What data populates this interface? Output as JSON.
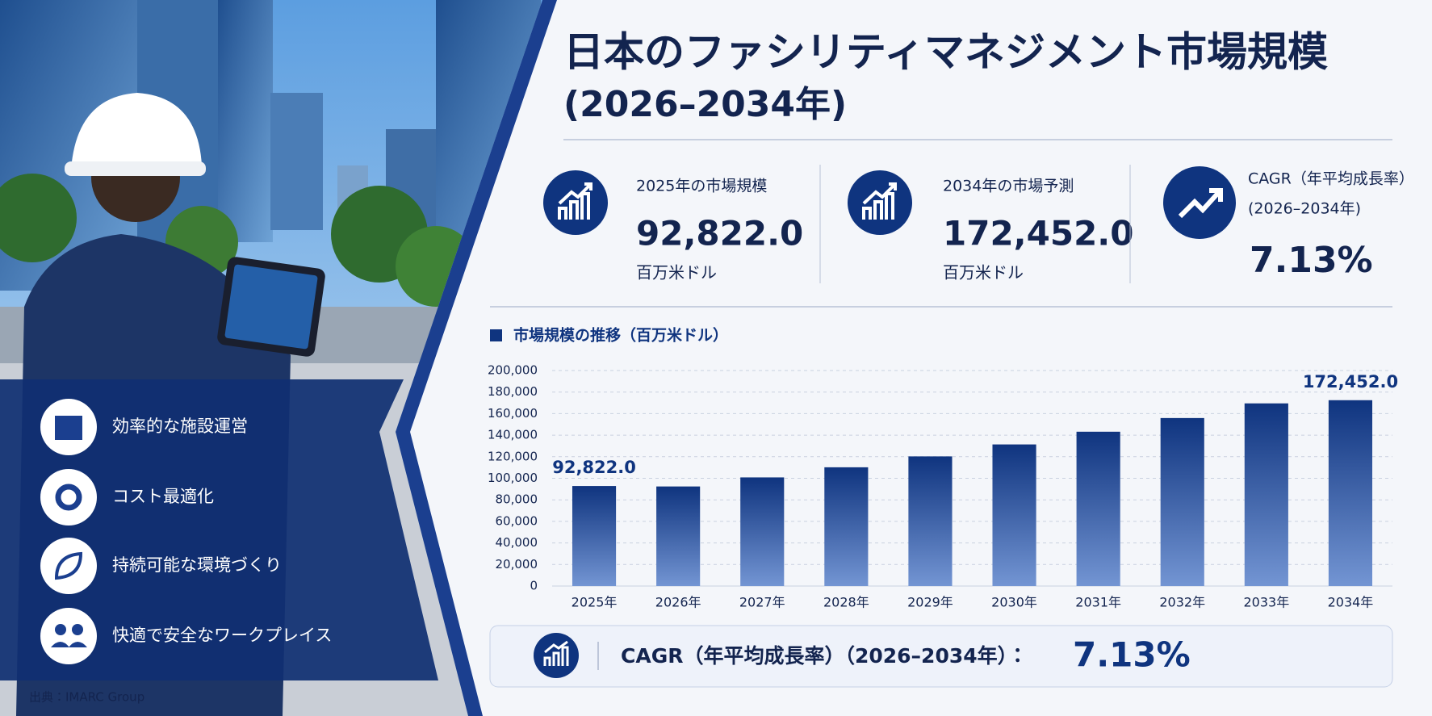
{
  "header": {
    "title": "日本のファシリティマネジメント市場規模",
    "subtitle": "(2026–2034年)"
  },
  "kpis": [
    {
      "label": "2025年の市場規模",
      "value": "92,822.0",
      "unit": "百万米ドル"
    },
    {
      "label": "2034年の市場予測",
      "value": "172,452.0",
      "unit": "百万米ドル"
    },
    {
      "label": "CAGR（年平均成長率）",
      "sublabel": "(2026–2034年)",
      "value": "7.13%"
    }
  ],
  "features": [
    "効率的な施設運営",
    "コスト最適化",
    "持続可能な環境づくり",
    "快適で安全なワークプレイス"
  ],
  "source": "出典：IMARC Group",
  "chart_data": {
    "type": "bar",
    "title": "市場規模の推移（百万米ドル）",
    "categories": [
      "2025年",
      "2026年",
      "2027年",
      "2028年",
      "2029年",
      "2030年",
      "2031年",
      "2032年",
      "2033年",
      "2034年"
    ],
    "values": [
      92822.0,
      92400,
      100800,
      110200,
      120300,
      131400,
      143200,
      155900,
      169500,
      172452.0
    ],
    "value_labels": [
      "92,822.0",
      null,
      null,
      null,
      null,
      null,
      null,
      null,
      null,
      "172,452.0"
    ],
    "color": "#0f347f",
    "ylim": [
      0,
      200000
    ],
    "yticks": [
      0,
      {
        "value": 20000,
        "label": "20,000"
      },
      {
        "value": 40000,
        "label": "40,000"
      },
      {
        "value": 60000,
        "label": "60,000"
      },
      {
        "value": 80000,
        "label": "80,000"
      },
      {
        "value": 100000,
        "label": "100,000"
      },
      {
        "value": 120000,
        "label": "120,000"
      },
      {
        "value": 140000,
        "label": "140,000"
      },
      {
        "value": 160000,
        "label": "160,000"
      },
      {
        "value": 180000,
        "label": "180,000"
      },
      {
        "value": 200000,
        "label": "200,000"
      }
    ],
    "grid": true
  },
  "cagr_banner": {
    "label": "CAGR（年平均成長率）（2026–2034年）：",
    "value": "7.13%"
  }
}
